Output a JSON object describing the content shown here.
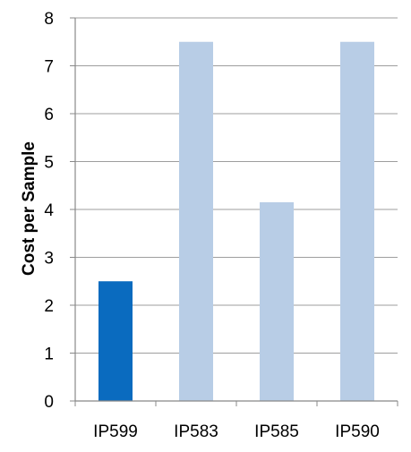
{
  "chart_data": {
    "type": "bar",
    "title": "",
    "xlabel": "",
    "ylabel": "Cost per Sample",
    "ylim": [
      0,
      8
    ],
    "yticks": [
      0,
      1,
      2,
      3,
      4,
      5,
      6,
      7,
      8
    ],
    "grid": true,
    "legend": "none",
    "categories": [
      "IP599",
      "IP583",
      "IP585",
      "IP590"
    ],
    "values": [
      2.5,
      7.5,
      4.15,
      7.5
    ],
    "bar_colors": [
      "#0a6bbf",
      "#b8cde6",
      "#b8cde6",
      "#b8cde6"
    ],
    "gridline_color": "#9e9e9e",
    "axis_color": "#888888",
    "text_color": "#000000"
  }
}
